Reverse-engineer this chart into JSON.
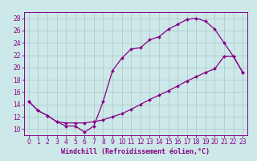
{
  "xlabel": "Windchill (Refroidissement éolien,°C)",
  "background_color": "#cce8e8",
  "grid_color": "#b0cccc",
  "line_color": "#880088",
  "spine_color": "#880088",
  "xlim": [
    -0.5,
    23.5
  ],
  "ylim": [
    9.0,
    29.0
  ],
  "xticks": [
    0,
    1,
    2,
    3,
    4,
    5,
    6,
    7,
    8,
    9,
    10,
    11,
    12,
    13,
    14,
    15,
    16,
    17,
    18,
    19,
    20,
    21,
    22,
    23
  ],
  "yticks": [
    10,
    12,
    14,
    16,
    18,
    20,
    22,
    24,
    26,
    28
  ],
  "line1_x": [
    0,
    1,
    2,
    3,
    4,
    5,
    6,
    7,
    8,
    9,
    10,
    11,
    12,
    13,
    14,
    15,
    16,
    17,
    18,
    19,
    20,
    21,
    22,
    23
  ],
  "line1_y": [
    14.5,
    13.0,
    12.2,
    11.2,
    10.5,
    10.5,
    9.5,
    10.5,
    14.5,
    19.5,
    21.5,
    23.0,
    23.2,
    24.5,
    25.0,
    26.2,
    27.0,
    27.8,
    28.0,
    27.5,
    26.2,
    24.0,
    21.8,
    19.2
  ],
  "line2_x": [
    0,
    1,
    2,
    3,
    4,
    5,
    6,
    7,
    8,
    9,
    10,
    11,
    12,
    13,
    14,
    15,
    16,
    17,
    18,
    19,
    20,
    21,
    22,
    23
  ],
  "line2_y": [
    14.5,
    13.0,
    12.2,
    11.2,
    11.0,
    11.0,
    11.0,
    11.2,
    11.5,
    12.0,
    12.5,
    13.2,
    14.0,
    14.8,
    15.5,
    16.2,
    17.0,
    17.8,
    18.5,
    19.2,
    19.8,
    21.8,
    21.8,
    19.2
  ],
  "tick_fontsize": 5.5,
  "xlabel_fontsize": 6.0
}
